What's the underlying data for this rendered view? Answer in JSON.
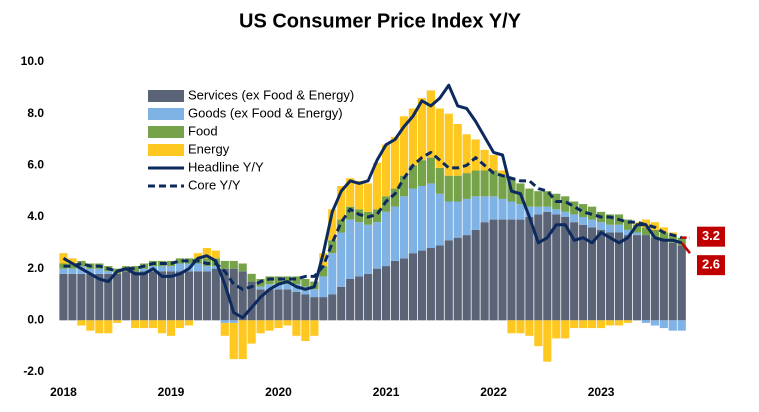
{
  "chart_data": {
    "type": "stacked-bar-line",
    "title": "US Consumer Price Index Y/Y",
    "categories": [
      "2018",
      null,
      null,
      null,
      null,
      null,
      null,
      null,
      null,
      null,
      null,
      null,
      "2019",
      null,
      null,
      null,
      null,
      null,
      null,
      null,
      null,
      null,
      null,
      null,
      "2020",
      null,
      null,
      null,
      null,
      null,
      null,
      null,
      null,
      null,
      null,
      null,
      "2021",
      null,
      null,
      null,
      null,
      null,
      null,
      null,
      null,
      null,
      null,
      null,
      "2022",
      null,
      null,
      null,
      null,
      null,
      null,
      null,
      null,
      null,
      null,
      null,
      "2023",
      null,
      null,
      null,
      null,
      null,
      null,
      null,
      null,
      null
    ],
    "ylim": [
      -2,
      10
    ],
    "yticks": [
      {
        "value": -2,
        "label": "-2.0"
      },
      {
        "value": 0,
        "label": "0.0"
      },
      {
        "value": 2,
        "label": "2.0"
      },
      {
        "value": 4,
        "label": "4.0"
      },
      {
        "value": 6,
        "label": "6.0"
      },
      {
        "value": 8,
        "label": "8.0"
      },
      {
        "value": 10,
        "label": "10.0"
      }
    ],
    "grid": false,
    "series": [
      {
        "name": "Services (ex Food & Energy)",
        "kind": "bar",
        "color": "#5b6477",
        "values": [
          1.8,
          1.8,
          1.8,
          1.8,
          1.8,
          1.8,
          1.8,
          1.9,
          1.9,
          1.9,
          1.9,
          1.9,
          1.9,
          1.9,
          1.9,
          1.9,
          1.9,
          2.0,
          2.0,
          2.0,
          1.9,
          1.5,
          1.2,
          1.2,
          1.2,
          1.2,
          1.1,
          1.0,
          0.9,
          0.9,
          1.0,
          1.3,
          1.6,
          1.7,
          1.8,
          2.0,
          2.1,
          2.3,
          2.4,
          2.6,
          2.7,
          2.8,
          2.9,
          3.1,
          3.2,
          3.3,
          3.5,
          3.8,
          3.9,
          3.9,
          3.9,
          3.9,
          4.0,
          4.1,
          4.2,
          4.1,
          4.0,
          3.8,
          3.7,
          3.6,
          3.5,
          3.4,
          3.4,
          3.3,
          3.3,
          3.3,
          3.2,
          3.1,
          3.0,
          2.9
        ]
      },
      {
        "name": "Goods (ex Food & Energy)",
        "kind": "bar",
        "color": "#7fb2e5",
        "values": [
          0.2,
          0.2,
          0.3,
          0.2,
          0.2,
          0.1,
          0.0,
          0.0,
          0.0,
          0.1,
          0.2,
          0.2,
          0.2,
          0.3,
          0.3,
          0.3,
          0.2,
          0.1,
          -0.1,
          -0.1,
          0.0,
          0.0,
          0.1,
          0.2,
          0.2,
          0.2,
          0.3,
          0.3,
          0.3,
          0.8,
          1.6,
          2.1,
          2.3,
          2.1,
          1.9,
          1.8,
          2.1,
          2.1,
          2.4,
          2.5,
          2.5,
          2.5,
          2.0,
          1.5,
          1.4,
          1.4,
          1.3,
          1.0,
          0.9,
          0.8,
          0.7,
          0.6,
          0.4,
          0.3,
          0.2,
          0.2,
          0.2,
          0.3,
          0.3,
          0.3,
          0.3,
          0.3,
          0.3,
          0.2,
          0.1,
          -0.1,
          -0.2,
          -0.3,
          -0.4,
          -0.4
        ]
      },
      {
        "name": "Food",
        "kind": "bar",
        "color": "#76a34a",
        "values": [
          0.2,
          0.2,
          0.2,
          0.2,
          0.2,
          0.2,
          0.2,
          0.2,
          0.2,
          0.2,
          0.2,
          0.2,
          0.2,
          0.2,
          0.2,
          0.2,
          0.3,
          0.3,
          0.3,
          0.3,
          0.3,
          0.3,
          0.3,
          0.3,
          0.3,
          0.3,
          0.3,
          0.3,
          0.3,
          0.4,
          0.5,
          0.5,
          0.5,
          0.5,
          0.5,
          0.5,
          0.6,
          0.7,
          0.8,
          0.9,
          1.0,
          1.0,
          1.0,
          1.0,
          1.0,
          1.0,
          1.0,
          1.0,
          1.0,
          0.9,
          0.9,
          0.8,
          0.7,
          0.6,
          0.6,
          0.6,
          0.6,
          0.5,
          0.5,
          0.5,
          0.4,
          0.4,
          0.4,
          0.4,
          0.3,
          0.3,
          0.3,
          0.3,
          0.3,
          0.3
        ]
      },
      {
        "name": "Energy",
        "kind": "bar",
        "color": "#ffc820",
        "values": [
          0.4,
          0.2,
          -0.2,
          -0.4,
          -0.5,
          -0.5,
          -0.1,
          0.0,
          -0.3,
          -0.3,
          -0.3,
          -0.5,
          -0.6,
          -0.3,
          -0.2,
          0.2,
          0.4,
          0.3,
          -0.5,
          -1.4,
          -1.5,
          -0.9,
          -0.5,
          -0.4,
          -0.3,
          -0.2,
          -0.6,
          -0.8,
          -0.6,
          0.5,
          1.2,
          1.3,
          1.1,
          1.1,
          1.1,
          1.8,
          2.0,
          2.0,
          2.3,
          2.2,
          2.4,
          2.6,
          2.3,
          2.4,
          2.0,
          1.5,
          1.2,
          0.8,
          0.6,
          0.2,
          -0.5,
          -0.5,
          -0.6,
          -1.0,
          -1.6,
          -0.7,
          -0.7,
          -0.3,
          -0.3,
          -0.3,
          -0.3,
          -0.2,
          -0.2,
          -0.1,
          0.1,
          0.3,
          0.3,
          0.2,
          0.1,
          0.0
        ]
      },
      {
        "name": "Headline Y/Y",
        "kind": "line",
        "dash": false,
        "color": "#0d2a5e",
        "values": [
          2.4,
          2.2,
          2.0,
          1.8,
          1.6,
          1.5,
          1.9,
          2.0,
          1.8,
          1.8,
          2.0,
          1.7,
          1.7,
          1.8,
          2.0,
          2.4,
          2.5,
          2.3,
          1.4,
          0.3,
          0.1,
          0.5,
          0.9,
          1.2,
          1.4,
          1.5,
          1.3,
          1.2,
          1.3,
          2.6,
          4.2,
          5.0,
          5.4,
          5.3,
          5.4,
          6.2,
          6.8,
          7.0,
          7.5,
          7.9,
          8.5,
          8.3,
          8.6,
          9.1,
          8.3,
          8.2,
          7.7,
          7.1,
          6.5,
          6.4,
          5.0,
          4.9,
          4.0,
          3.0,
          3.2,
          3.7,
          3.7,
          3.1,
          3.2,
          3.0,
          3.4,
          3.2,
          3.0,
          3.2,
          3.7,
          3.7,
          3.2,
          3.1,
          3.1,
          3.0
        ]
      },
      {
        "name": "Core Y/Y",
        "kind": "line",
        "dash": true,
        "color": "#0d2a5e",
        "values": [
          2.1,
          2.1,
          2.2,
          2.1,
          2.1,
          2.0,
          1.9,
          2.0,
          2.0,
          2.1,
          2.2,
          2.2,
          2.2,
          2.3,
          2.3,
          2.3,
          2.2,
          2.2,
          1.9,
          1.4,
          1.2,
          1.3,
          1.5,
          1.6,
          1.6,
          1.6,
          1.6,
          1.7,
          1.7,
          2.1,
          3.0,
          3.8,
          4.3,
          4.1,
          4.0,
          4.1,
          4.6,
          4.9,
          5.5,
          6.0,
          6.3,
          6.5,
          6.2,
          5.9,
          5.9,
          6.0,
          6.3,
          6.0,
          5.7,
          5.6,
          5.5,
          5.4,
          5.4,
          5.1,
          5.0,
          4.6,
          4.6,
          4.4,
          4.2,
          4.1,
          4.0,
          4.0,
          3.9,
          3.8,
          3.8,
          3.7,
          3.6,
          3.4,
          3.3,
          3.2
        ]
      }
    ],
    "annotations": [
      {
        "value": 3.2,
        "dash": true,
        "color": "#c00000"
      },
      {
        "value": 2.6,
        "dash": false,
        "color": "#c00000"
      }
    ]
  }
}
